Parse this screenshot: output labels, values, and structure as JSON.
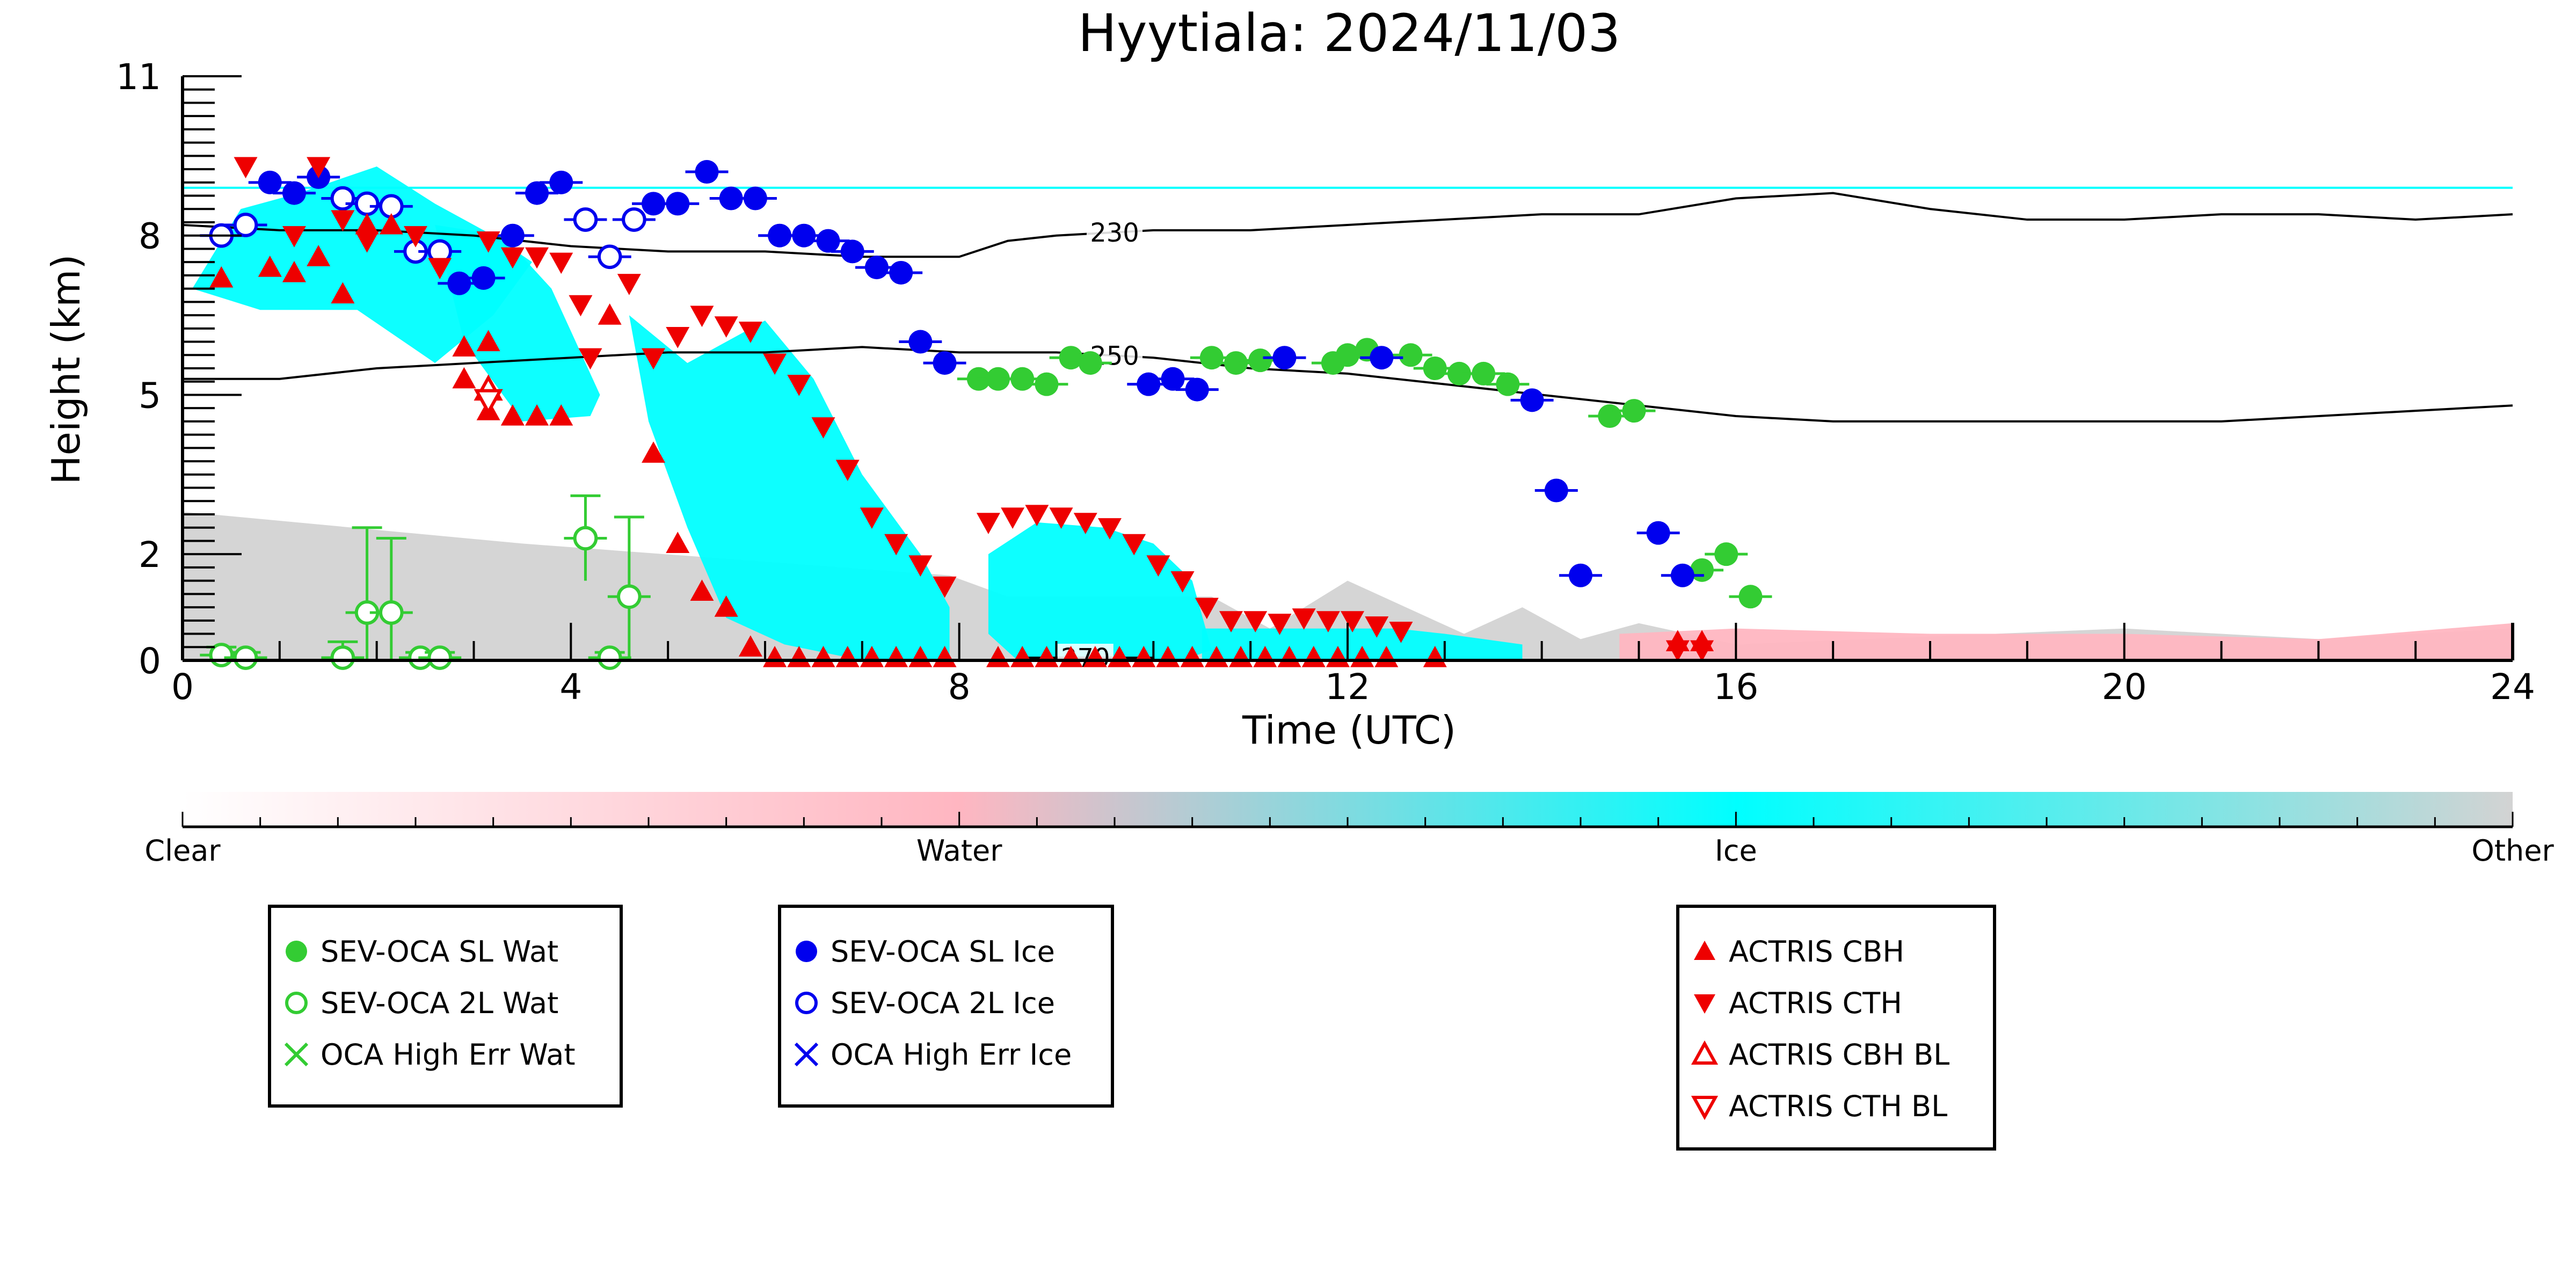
{
  "chart_data": {
    "type": "scatter",
    "title": "Hyytiala: 2024/11/03",
    "xlabel": "Time (UTC)",
    "ylabel": "Height (km)",
    "xlim": [
      0,
      24
    ],
    "ylim": [
      0,
      11
    ],
    "x_ticks": [
      0,
      4,
      8,
      12,
      16,
      20,
      24
    ],
    "y_ticks": [
      0,
      2,
      5,
      8,
      11
    ],
    "y_tick_labels": [
      "0",
      "2",
      "5",
      "8",
      "11"
    ],
    "grid": false,
    "background_field": {
      "description": "cloud classification",
      "colors": {
        "clear": "#ffffff",
        "water": "#ffb6c1",
        "ice": "#00ffff",
        "other": "#d3d3d3"
      },
      "ice_regions": [
        {
          "x": [
            0.1,
            0.6,
            1.2,
            2.0,
            2.6,
            3.2,
            3.6,
            3.2,
            2.6,
            1.8,
            0.8,
            0.1
          ],
          "y": [
            7.0,
            8.5,
            8.8,
            9.3,
            8.6,
            8.0,
            7.5,
            6.5,
            5.6,
            6.6,
            6.6,
            7.0
          ]
        },
        {
          "x": [
            2.6,
            3.3,
            3.8,
            4.3,
            4.2,
            3.5,
            2.9
          ],
          "y": [
            8.2,
            8.0,
            7.0,
            5.0,
            4.6,
            4.5,
            6.0
          ]
        },
        {
          "x": [
            4.6,
            5.2,
            6.0,
            6.5,
            7.0,
            7.6,
            7.9,
            7.9,
            7.0,
            6.2,
            5.6,
            5.2,
            4.8
          ],
          "y": [
            6.5,
            5.6,
            6.4,
            5.3,
            3.5,
            2.0,
            1.0,
            0.0,
            0.0,
            0.3,
            0.8,
            2.5,
            4.5
          ]
        },
        {
          "x": [
            8.3,
            8.8,
            9.5,
            10.0,
            10.4,
            10.6,
            10.3,
            9.4,
            8.6,
            8.3
          ],
          "y": [
            2.0,
            2.6,
            2.5,
            2.2,
            1.5,
            0.2,
            0.0,
            0.0,
            0.0,
            0.5
          ]
        },
        {
          "x": [
            10.5,
            11.5,
            12.5,
            13.0,
            13.8,
            13.8,
            12.0,
            10.5
          ],
          "y": [
            0.6,
            0.6,
            0.6,
            0.5,
            0.3,
            0.0,
            0.0,
            0.0
          ]
        }
      ],
      "other_regions": [
        {
          "x": [
            0.0,
            3.5,
            7.9,
            8.5,
            10.6,
            11.2,
            12.0,
            13.2,
            13.8,
            14.4,
            15.0,
            16.0,
            20.0,
            22.0,
            24.0,
            24.0,
            0.0
          ],
          "y": [
            2.8,
            2.2,
            1.6,
            1.2,
            1.2,
            0.6,
            1.5,
            0.5,
            1.0,
            0.4,
            0.7,
            0.3,
            0.6,
            0.4,
            0.6,
            0.0,
            0.0
          ]
        }
      ],
      "water_regions": [
        {
          "x": [
            14.8,
            16.0,
            18.0,
            20.0,
            22.0,
            24.0,
            24.0,
            14.8
          ],
          "y": [
            0.5,
            0.6,
            0.5,
            0.5,
            0.4,
            0.7,
            0.0,
            0.0
          ]
        }
      ]
    },
    "tropopause_line": {
      "color": "#00ffff",
      "y": 8.9
    },
    "contours": [
      {
        "label": "230",
        "label_x": 9.6,
        "x": [
          0,
          1,
          2,
          3,
          4,
          5,
          6,
          7,
          8,
          8.5,
          9,
          10,
          11,
          12,
          13,
          14,
          15,
          16,
          17,
          18,
          19,
          20,
          21,
          22,
          23,
          24
        ],
        "y": [
          8.2,
          8.1,
          8.1,
          8.0,
          7.8,
          7.7,
          7.7,
          7.6,
          7.6,
          7.9,
          8.0,
          8.1,
          8.1,
          8.2,
          8.3,
          8.4,
          8.4,
          8.7,
          8.8,
          8.5,
          8.3,
          8.3,
          8.4,
          8.4,
          8.3,
          8.4
        ]
      },
      {
        "label": "250",
        "label_x": 9.6,
        "x": [
          0,
          1,
          2,
          3,
          4,
          5,
          6,
          7,
          8,
          9,
          10,
          11,
          12,
          13,
          14,
          15,
          16,
          17,
          18,
          19,
          20,
          21,
          22,
          23,
          24
        ],
        "y": [
          5.3,
          5.3,
          5.5,
          5.6,
          5.7,
          5.8,
          5.8,
          5.9,
          5.8,
          5.8,
          5.7,
          5.5,
          5.4,
          5.2,
          5.0,
          4.8,
          4.6,
          4.5,
          4.5,
          4.5,
          4.5,
          4.5,
          4.6,
          4.7,
          4.8
        ]
      },
      {
        "label": "270",
        "label_x": 9.3,
        "x": [
          8.6,
          9.3,
          10.0
        ],
        "y": [
          0.05,
          0.05,
          0.05
        ]
      }
    ],
    "series": [
      {
        "name": "SEV-OCA SL Wat",
        "marker": "filled-circle",
        "color": "#33cc33",
        "points": [
          [
            8.2,
            5.3
          ],
          [
            8.4,
            5.3
          ],
          [
            8.65,
            5.3
          ],
          [
            8.9,
            5.2
          ],
          [
            9.15,
            5.7
          ],
          [
            9.35,
            5.6
          ],
          [
            10.6,
            5.7
          ],
          [
            10.85,
            5.6
          ],
          [
            11.1,
            5.65
          ],
          [
            11.85,
            5.6
          ],
          [
            12.0,
            5.75
          ],
          [
            12.2,
            5.85
          ],
          [
            12.65,
            5.75
          ],
          [
            12.9,
            5.5
          ],
          [
            13.15,
            5.4
          ],
          [
            13.4,
            5.4
          ],
          [
            13.65,
            5.2
          ],
          [
            14.7,
            4.6
          ],
          [
            14.95,
            4.7
          ],
          [
            15.65,
            1.7
          ],
          [
            15.9,
            2.0
          ],
          [
            16.15,
            1.2
          ]
        ]
      },
      {
        "name": "SEV-OCA 2L Wat",
        "marker": "open-circle",
        "color": "#33cc33",
        "points": [
          [
            0.4,
            0.1
          ],
          [
            0.65,
            0.05
          ],
          [
            1.65,
            0.05
          ],
          [
            1.9,
            0.9
          ],
          [
            2.15,
            0.9
          ],
          [
            2.45,
            0.05
          ],
          [
            2.65,
            0.05
          ],
          [
            4.15,
            2.3
          ],
          [
            4.4,
            0.05
          ],
          [
            4.6,
            1.2
          ]
        ],
        "errors": [
          0.15,
          0.1,
          0.3,
          1.6,
          1.4,
          0.1,
          0.1,
          0.8,
          0.1,
          1.5
        ]
      },
      {
        "name": "OCA High Err Wat",
        "marker": "x",
        "color": "#33cc33",
        "points": []
      },
      {
        "name": "SEV-OCA SL Ice",
        "marker": "filled-circle",
        "color": "#0000ee",
        "points": [
          [
            0.9,
            9.0
          ],
          [
            1.15,
            8.8
          ],
          [
            1.4,
            9.1
          ],
          [
            2.85,
            7.1
          ],
          [
            3.1,
            7.2
          ],
          [
            3.4,
            8.0
          ],
          [
            3.65,
            8.8
          ],
          [
            3.9,
            9.0
          ],
          [
            4.85,
            8.6
          ],
          [
            5.1,
            8.6
          ],
          [
            5.4,
            9.2
          ],
          [
            5.65,
            8.7
          ],
          [
            5.9,
            8.7
          ],
          [
            6.15,
            8.0
          ],
          [
            6.4,
            8.0
          ],
          [
            6.65,
            7.9
          ],
          [
            6.9,
            7.7
          ],
          [
            7.15,
            7.4
          ],
          [
            7.4,
            7.3
          ],
          [
            7.6,
            6.0
          ],
          [
            7.85,
            5.6
          ],
          [
            9.95,
            5.2
          ],
          [
            10.2,
            5.3
          ],
          [
            10.45,
            5.1
          ],
          [
            11.35,
            5.7
          ],
          [
            12.35,
            5.7
          ],
          [
            13.9,
            4.9
          ],
          [
            14.15,
            3.2
          ],
          [
            14.4,
            1.6
          ],
          [
            15.2,
            2.4
          ],
          [
            15.45,
            1.6
          ]
        ]
      },
      {
        "name": "SEV-OCA 2L Ice",
        "marker": "open-circle",
        "color": "#0000ee",
        "points": [
          [
            0.4,
            8.0
          ],
          [
            0.65,
            8.2
          ],
          [
            1.65,
            8.7
          ],
          [
            1.9,
            8.6
          ],
          [
            2.15,
            8.55
          ],
          [
            2.4,
            7.7
          ],
          [
            2.65,
            7.7
          ],
          [
            4.15,
            8.3
          ],
          [
            4.4,
            7.6
          ],
          [
            4.65,
            8.3
          ]
        ]
      },
      {
        "name": "OCA High Err Ice",
        "marker": "x",
        "color": "#0000ee",
        "points": []
      },
      {
        "name": "ACTRIS CBH",
        "marker": "filled-triangle-up",
        "color": "#ee0000",
        "points": [
          [
            0.4,
            7.2
          ],
          [
            0.9,
            7.4
          ],
          [
            1.15,
            7.3
          ],
          [
            1.4,
            7.6
          ],
          [
            1.65,
            6.9
          ],
          [
            1.9,
            8.2
          ],
          [
            2.15,
            8.2
          ],
          [
            2.9,
            5.9
          ],
          [
            2.9,
            5.3
          ],
          [
            3.15,
            6.0
          ],
          [
            3.15,
            4.7
          ],
          [
            3.4,
            4.6
          ],
          [
            3.65,
            4.6
          ],
          [
            3.9,
            4.6
          ],
          [
            4.4,
            6.5
          ],
          [
            4.85,
            3.9
          ],
          [
            5.1,
            2.2
          ],
          [
            5.35,
            1.3
          ],
          [
            5.6,
            1.0
          ],
          [
            5.85,
            0.25
          ],
          [
            6.1,
            0.05
          ],
          [
            6.35,
            0.05
          ],
          [
            6.6,
            0.05
          ],
          [
            6.85,
            0.05
          ],
          [
            7.1,
            0.05
          ],
          [
            7.35,
            0.05
          ],
          [
            7.6,
            0.05
          ],
          [
            7.85,
            0.05
          ],
          [
            8.4,
            0.05
          ],
          [
            8.65,
            0.05
          ],
          [
            8.9,
            0.05
          ],
          [
            9.15,
            0.05
          ],
          [
            9.4,
            0.05
          ],
          [
            9.65,
            0.05
          ],
          [
            9.9,
            0.05
          ],
          [
            10.15,
            0.05
          ],
          [
            10.4,
            0.05
          ],
          [
            10.65,
            0.05
          ],
          [
            10.9,
            0.05
          ],
          [
            11.15,
            0.05
          ],
          [
            11.4,
            0.05
          ],
          [
            11.65,
            0.05
          ],
          [
            11.9,
            0.05
          ],
          [
            12.15,
            0.05
          ],
          [
            12.4,
            0.05
          ],
          [
            12.9,
            0.05
          ],
          [
            15.4,
            0.35
          ],
          [
            15.65,
            0.35
          ]
        ]
      },
      {
        "name": "ACTRIS CTH",
        "marker": "filled-triangle-down",
        "color": "#ee0000",
        "points": [
          [
            0.65,
            9.3
          ],
          [
            1.15,
            8.0
          ],
          [
            1.4,
            9.3
          ],
          [
            1.65,
            8.3
          ],
          [
            1.9,
            7.9
          ],
          [
            2.4,
            8.0
          ],
          [
            2.65,
            7.4
          ],
          [
            3.15,
            7.9
          ],
          [
            3.4,
            7.6
          ],
          [
            3.65,
            7.6
          ],
          [
            3.9,
            7.5
          ],
          [
            4.1,
            6.7
          ],
          [
            4.2,
            5.7
          ],
          [
            4.6,
            7.1
          ],
          [
            4.85,
            5.7
          ],
          [
            5.1,
            6.1
          ],
          [
            5.35,
            6.5
          ],
          [
            5.6,
            6.3
          ],
          [
            5.85,
            6.2
          ],
          [
            6.1,
            5.6
          ],
          [
            6.35,
            5.2
          ],
          [
            6.6,
            4.4
          ],
          [
            6.85,
            3.6
          ],
          [
            7.1,
            2.7
          ],
          [
            7.35,
            2.2
          ],
          [
            7.6,
            1.8
          ],
          [
            7.85,
            1.4
          ],
          [
            8.3,
            2.6
          ],
          [
            8.55,
            2.7
          ],
          [
            8.8,
            2.75
          ],
          [
            9.05,
            2.7
          ],
          [
            9.3,
            2.6
          ],
          [
            9.55,
            2.5
          ],
          [
            9.8,
            2.2
          ],
          [
            10.05,
            1.8
          ],
          [
            10.3,
            1.5
          ],
          [
            10.55,
            1.0
          ],
          [
            10.8,
            0.75
          ],
          [
            11.05,
            0.75
          ],
          [
            11.3,
            0.7
          ],
          [
            11.55,
            0.8
          ],
          [
            11.8,
            0.75
          ],
          [
            12.05,
            0.75
          ],
          [
            12.3,
            0.65
          ],
          [
            12.55,
            0.55
          ],
          [
            15.4,
            0.2
          ],
          [
            15.65,
            0.2
          ]
        ]
      },
      {
        "name": "ACTRIS CBH BL",
        "marker": "open-triangle-up",
        "color": "#ee0000",
        "points": [
          [
            3.15,
            5.1
          ]
        ]
      },
      {
        "name": "ACTRIS CTH BL",
        "marker": "open-triangle-down",
        "color": "#ee0000",
        "points": [
          [
            3.15,
            4.9
          ]
        ]
      }
    ],
    "colorbar": {
      "labels": [
        "Clear",
        "Water",
        "Ice",
        "Other"
      ],
      "colors": [
        "#ffffff",
        "#ffb6c1",
        "#00ffff",
        "#d3d3d3"
      ]
    },
    "legend_groups": [
      [
        "SEV-OCA SL Wat",
        "SEV-OCA 2L Wat",
        "OCA High Err Wat"
      ],
      [
        "SEV-OCA SL Ice",
        "SEV-OCA 2L Ice",
        "OCA High Err Ice"
      ],
      [
        "ACTRIS CBH",
        "ACTRIS CTH",
        "ACTRIS CBH BL",
        "ACTRIS CTH BL"
      ]
    ],
    "legend_placement": "bottom"
  }
}
